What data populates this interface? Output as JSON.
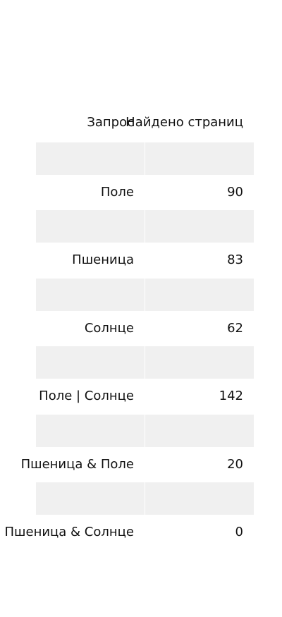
{
  "table": {
    "headers": {
      "query": "Запрос",
      "pages": "Найдено страниц"
    },
    "rows": [
      {
        "query": "Поле",
        "count": "90"
      },
      {
        "query": "Пшеница",
        "count": "83"
      },
      {
        "query": "Солнце",
        "count": "62"
      },
      {
        "query": "Поле | Солнце",
        "count": "142"
      },
      {
        "query": "Пшеница & Поле",
        "count": "20"
      },
      {
        "query": "Пшеница & Солнце",
        "count": "0"
      }
    ]
  }
}
